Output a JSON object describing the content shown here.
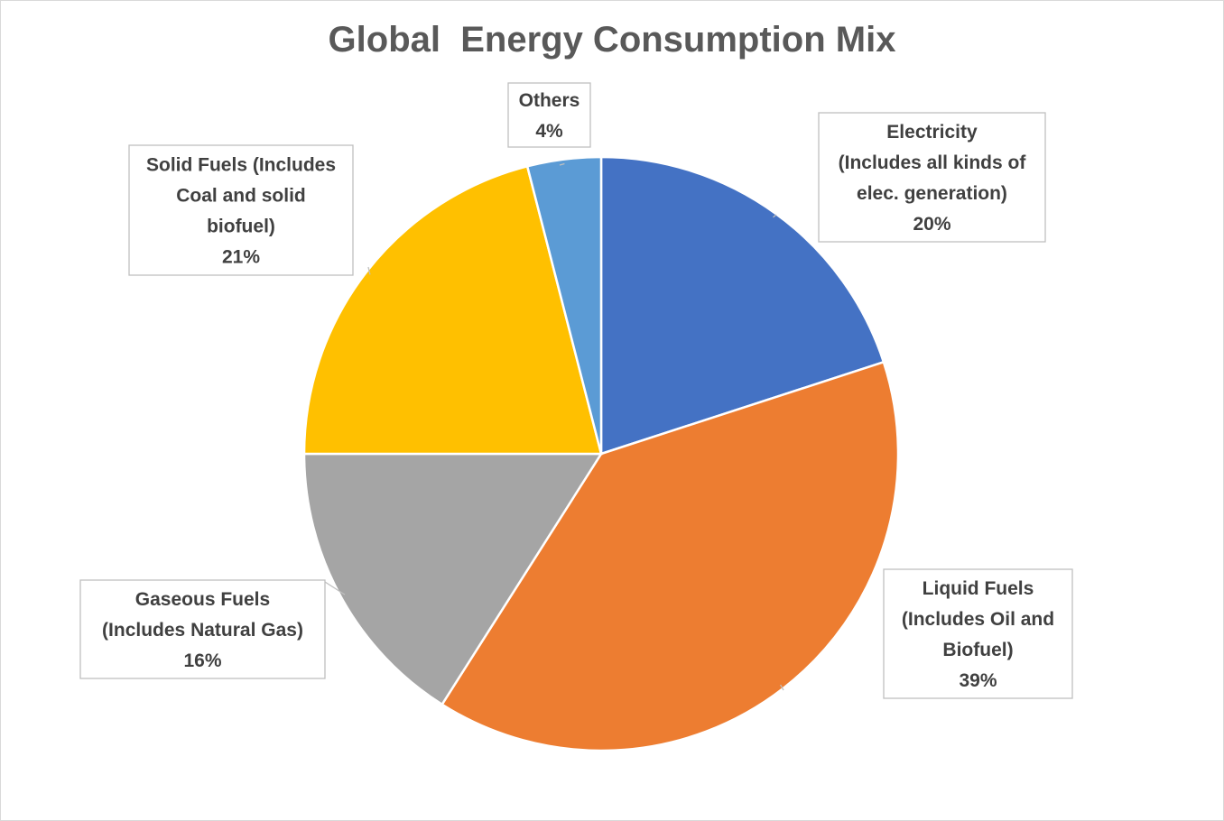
{
  "chart_data": {
    "type": "pie",
    "title": "Global  Energy Consumption Mix",
    "slices": [
      {
        "name": "Electricity",
        "label_lines": [
          "Electricity",
          "(Includes all kinds of",
          "elec. generation)"
        ],
        "value": 20,
        "value_label": "20%",
        "color": "#4472c4"
      },
      {
        "name": "Liquid Fuels",
        "label_lines": [
          "Liquid Fuels",
          "(Includes Oil and",
          "Biofuel)"
        ],
        "value": 39,
        "value_label": "39%",
        "color": "#ed7d31"
      },
      {
        "name": "Gaseous Fuels",
        "label_lines": [
          "Gaseous Fuels",
          "(Includes Natural Gas)"
        ],
        "value": 16,
        "value_label": "16%",
        "color": "#a5a5a5"
      },
      {
        "name": "Solid Fuels",
        "label_lines": [
          "Solid Fuels (Includes",
          "Coal and solid",
          "biofuel)"
        ],
        "value": 21,
        "value_label": "21%",
        "color": "#ffc000"
      },
      {
        "name": "Others",
        "label_lines": [
          "Others"
        ],
        "value": 4,
        "value_label": "4%",
        "color": "#5b9bd5"
      }
    ],
    "start_angle_deg": 0,
    "direction": "clockwise",
    "legend": "none",
    "data_labels": "callouts"
  }
}
